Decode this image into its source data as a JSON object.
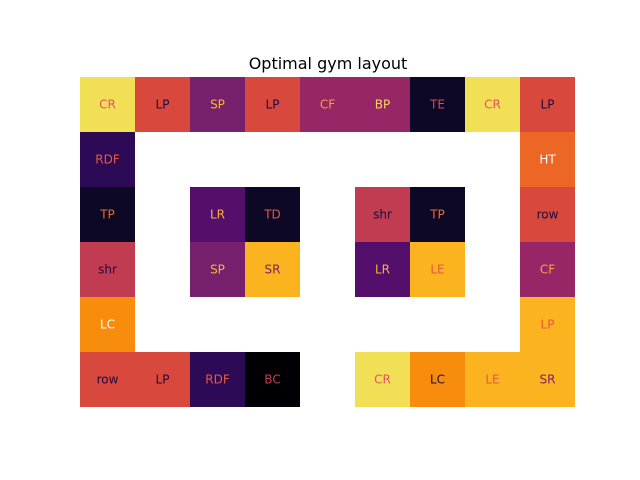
{
  "chart_data": {
    "type": "heatmap",
    "title": "Optimal gym layout",
    "xlabel": "",
    "ylabel": "",
    "grid": false,
    "axes_visible": false,
    "colormap": "inferno",
    "n_rows": 6,
    "n_cols": 9,
    "cells": [
      {
        "row": 0,
        "col": 0,
        "label": "CR",
        "fill": "#f1df56",
        "text_color": "#e75263"
      },
      {
        "row": 0,
        "col": 1,
        "label": "LP",
        "fill": "#d9483c",
        "text_color": "#1d0b3f"
      },
      {
        "row": 0,
        "col": 2,
        "label": "SP",
        "fill": "#77206d",
        "text_color": "#f9b826"
      },
      {
        "row": 0,
        "col": 3,
        "label": "LP",
        "fill": "#d9483c",
        "text_color": "#1d0b3f"
      },
      {
        "row": 0,
        "col": 4,
        "label": "CF",
        "fill": "#962665",
        "text_color": "#f7a33a"
      },
      {
        "row": 0,
        "col": 5,
        "label": "BP",
        "fill": "#962665",
        "text_color": "#fbd55b"
      },
      {
        "row": 0,
        "col": 6,
        "label": "TE",
        "fill": "#0d0826",
        "text_color": "#dc4b53"
      },
      {
        "row": 0,
        "col": 7,
        "label": "CR",
        "fill": "#f1df56",
        "text_color": "#e75263"
      },
      {
        "row": 0,
        "col": 8,
        "label": "LP",
        "fill": "#d9483c",
        "text_color": "#1d0b3f"
      },
      {
        "row": 1,
        "col": 0,
        "label": "RDF",
        "fill": "#2c0a55",
        "text_color": "#e85a3f"
      },
      {
        "row": 1,
        "col": 8,
        "label": "HT",
        "fill": "#ec6626",
        "text_color": "#ffffff"
      },
      {
        "row": 2,
        "col": 0,
        "label": "TP",
        "fill": "#0d0826",
        "text_color": "#ed6a26"
      },
      {
        "row": 2,
        "col": 2,
        "label": "LR",
        "fill": "#540f6d",
        "text_color": "#fbb033"
      },
      {
        "row": 2,
        "col": 3,
        "label": "TD",
        "fill": "#0d0826",
        "text_color": "#e45a3c"
      },
      {
        "row": 2,
        "col": 5,
        "label": "shr",
        "fill": "#c13c50",
        "text_color": "#1d0b3f"
      },
      {
        "row": 2,
        "col": 6,
        "label": "TP",
        "fill": "#0d0826",
        "text_color": "#ed6a26"
      },
      {
        "row": 2,
        "col": 8,
        "label": "row",
        "fill": "#d9483c",
        "text_color": "#1d0b3f"
      },
      {
        "row": 3,
        "col": 0,
        "label": "shr",
        "fill": "#c13c50",
        "text_color": "#1d0b3f"
      },
      {
        "row": 3,
        "col": 2,
        "label": "SP",
        "fill": "#77206d",
        "text_color": "#f9b826"
      },
      {
        "row": 3,
        "col": 3,
        "label": "SR",
        "fill": "#fbb420",
        "text_color": "#7d1e6b"
      },
      {
        "row": 3,
        "col": 5,
        "label": "LR",
        "fill": "#540f6d",
        "text_color": "#fbb033"
      },
      {
        "row": 3,
        "col": 6,
        "label": "LE",
        "fill": "#fbb420",
        "text_color": "#e45a3c"
      },
      {
        "row": 3,
        "col": 8,
        "label": "CF",
        "fill": "#962665",
        "text_color": "#f7a33a"
      },
      {
        "row": 4,
        "col": 0,
        "label": "LC",
        "fill": "#f88c0c",
        "text_color": "#ffffff"
      },
      {
        "row": 4,
        "col": 8,
        "label": "LP",
        "fill": "#fbb420",
        "text_color": "#e45a3c"
      },
      {
        "row": 5,
        "col": 0,
        "label": "row",
        "fill": "#d9483c",
        "text_color": "#1d0b3f"
      },
      {
        "row": 5,
        "col": 1,
        "label": "LP",
        "fill": "#d9483c",
        "text_color": "#1d0b3f"
      },
      {
        "row": 5,
        "col": 2,
        "label": "RDF",
        "fill": "#2c0a55",
        "text_color": "#e85a3f"
      },
      {
        "row": 5,
        "col": 3,
        "label": "BC",
        "fill": "#000004",
        "text_color": "#c13c50"
      },
      {
        "row": 5,
        "col": 5,
        "label": "CR",
        "fill": "#f1df56",
        "text_color": "#e75263"
      },
      {
        "row": 5,
        "col": 6,
        "label": "LC",
        "fill": "#f88c0c",
        "text_color": "#1d0b3f"
      },
      {
        "row": 5,
        "col": 7,
        "label": "LE",
        "fill": "#fbb420",
        "text_color": "#e45a3c"
      },
      {
        "row": 5,
        "col": 8,
        "label": "SR",
        "fill": "#fbb420",
        "text_color": "#7d1e6b"
      }
    ]
  }
}
